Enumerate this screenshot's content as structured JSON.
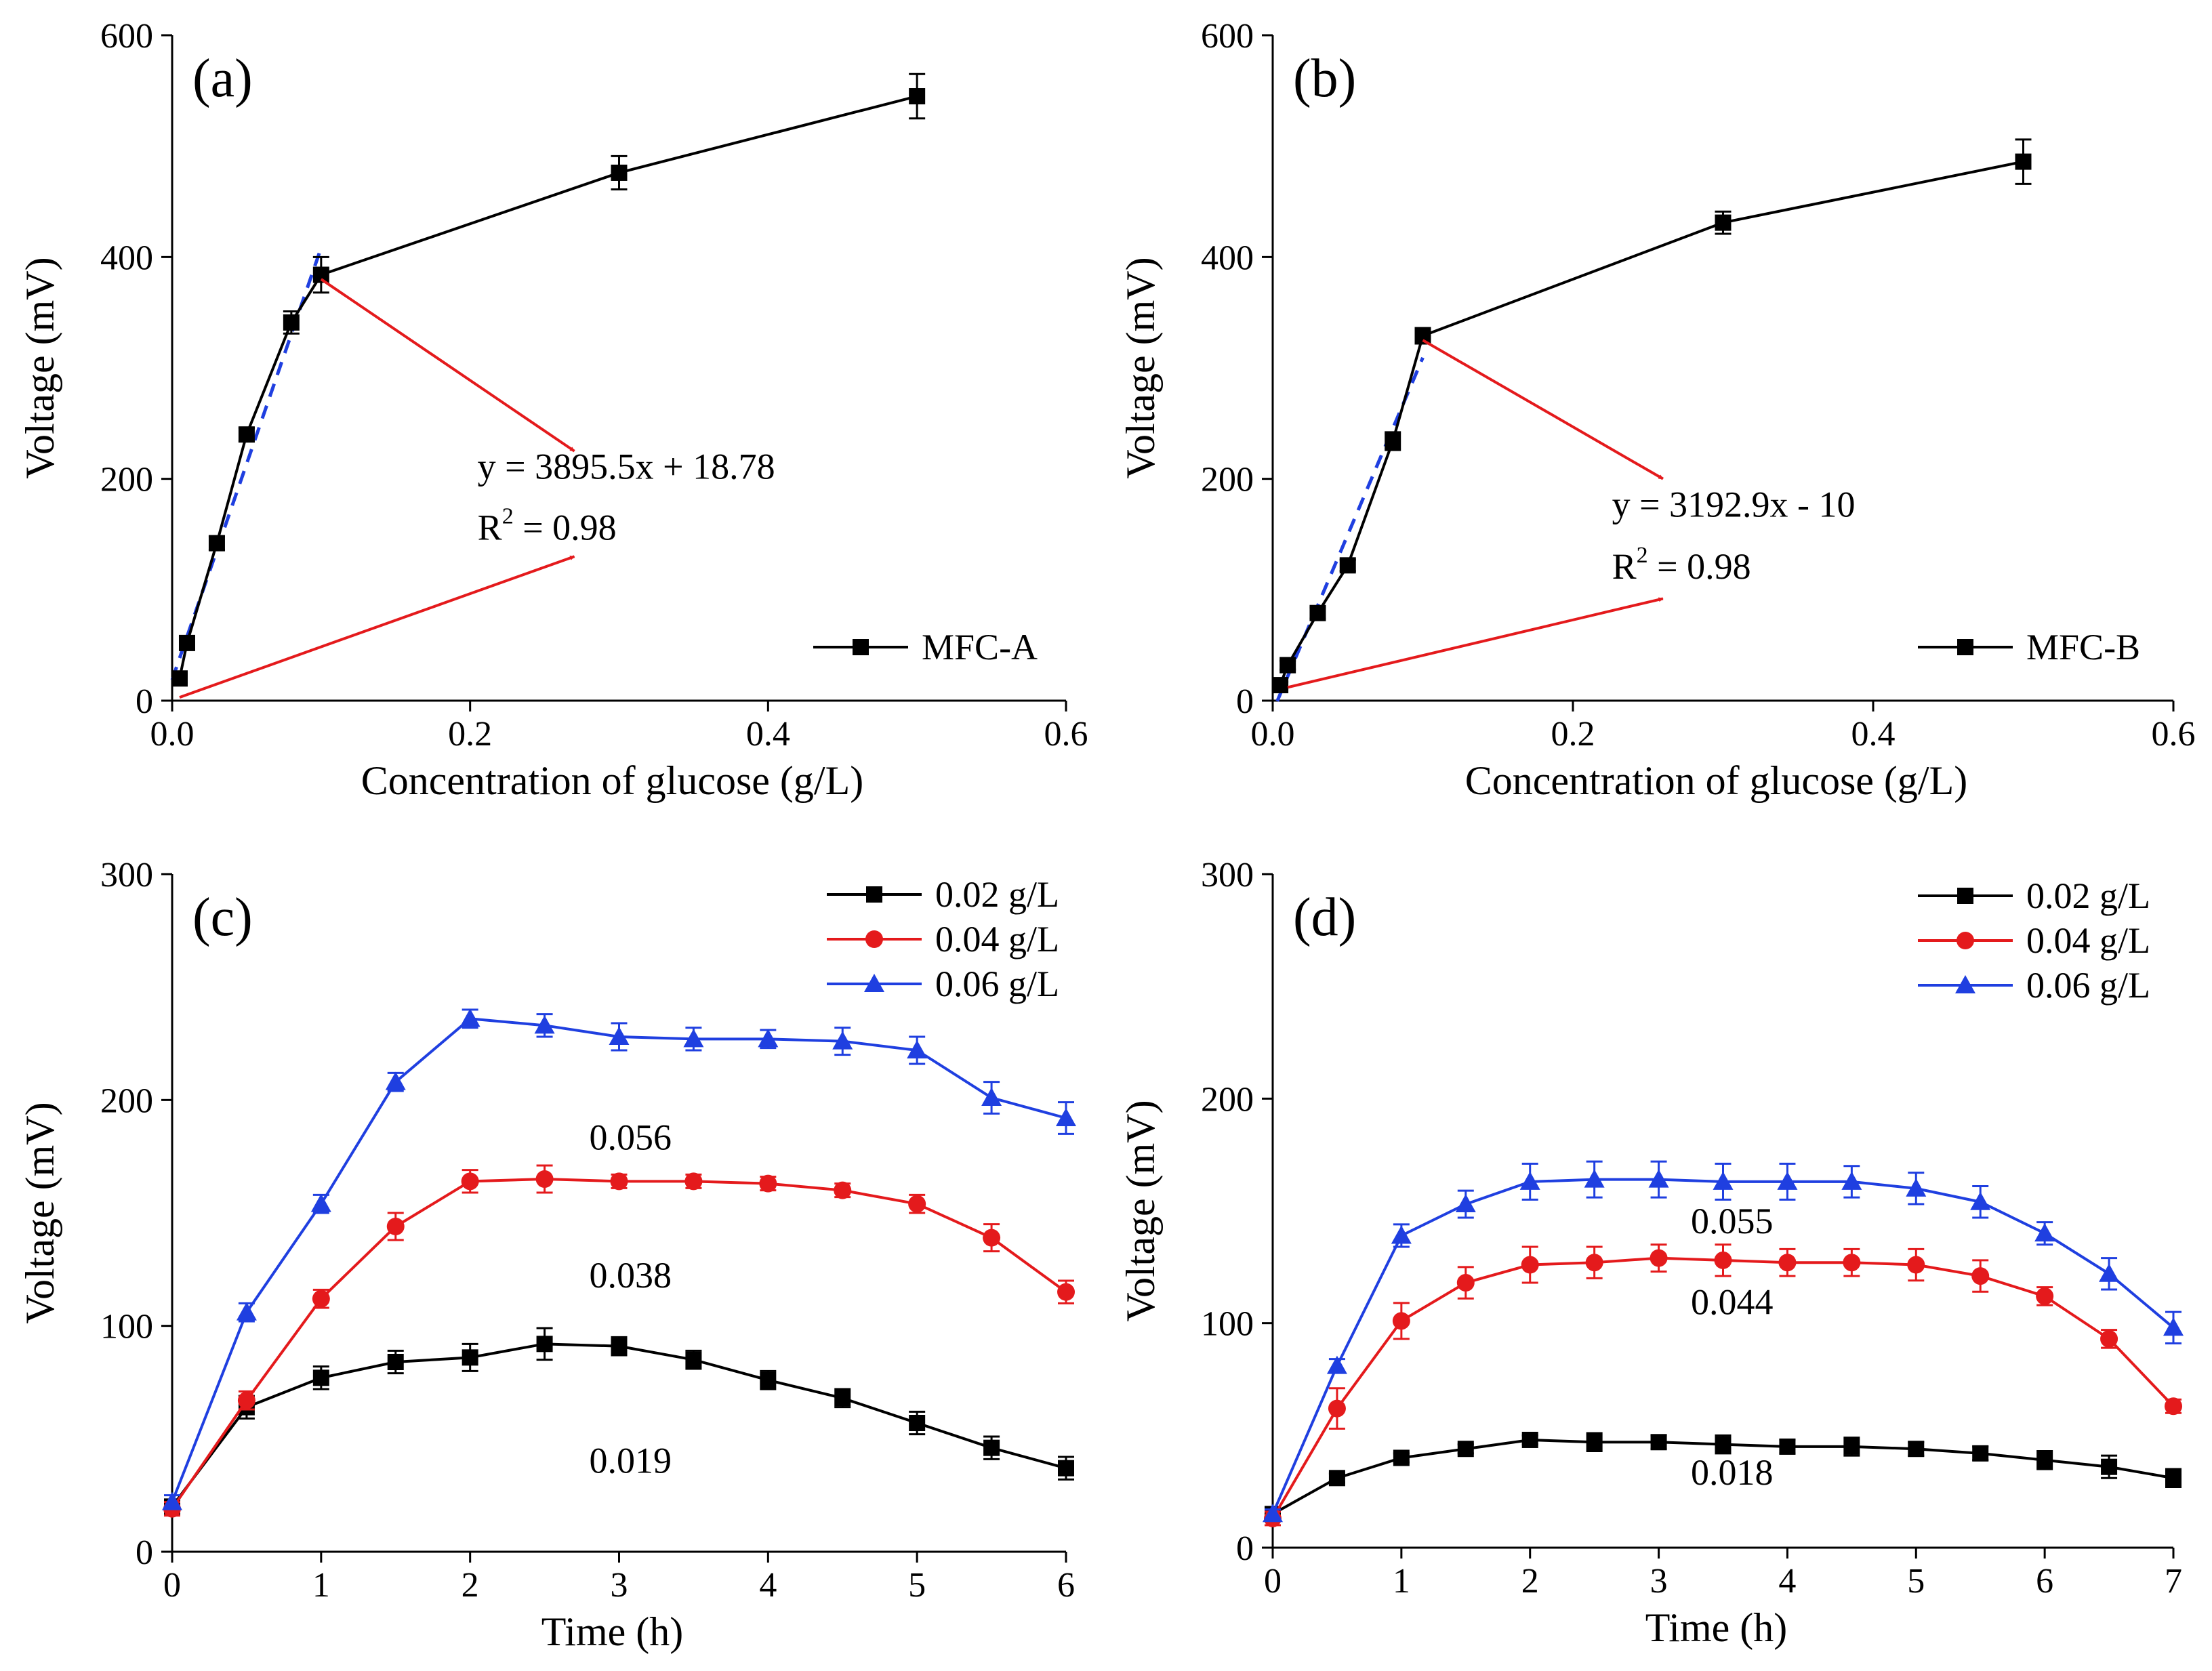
{
  "chart_data": [
    {
      "panel": "(a)",
      "type": "line",
      "xlabel": "Concentration of glucose (g/L)",
      "ylabel": "Voltage (mV)",
      "xlim": [
        0,
        0.6
      ],
      "ylim": [
        0,
        600
      ],
      "xticks": [
        0,
        0.2,
        0.4,
        0.6
      ],
      "xtick_labels": [
        "0.0",
        "0.2",
        "0.4",
        "0.6"
      ],
      "yticks": [
        0,
        200,
        400,
        600
      ],
      "ytick_labels": [
        "0",
        "200",
        "400",
        "600"
      ],
      "legend_position": "bottom-right",
      "series": [
        {
          "name": "MFC-A",
          "color": "#000000",
          "marker": "square",
          "x": [
            0.005,
            0.01,
            0.03,
            0.05,
            0.08,
            0.1,
            0.3,
            0.5
          ],
          "values": [
            20,
            52,
            142,
            240,
            341,
            384,
            476,
            545
          ],
          "errors": [
            4,
            6,
            6,
            6,
            10,
            16,
            15,
            20
          ]
        }
      ],
      "fit_line": {
        "slope": 3895.5,
        "intercept": 18.78,
        "x_range": [
          0.0,
          0.1
        ],
        "color": "#1f3fe0",
        "style": "dashed"
      },
      "equation": "y = 3895.5x + 18.78",
      "r2_prefix": "R",
      "r2_sup": "2",
      "r2_value": " = 0.98",
      "arrows": [
        {
          "from": [
            0.1,
            380
          ],
          "to": [
            0.27,
            225
          ],
          "color": "#e41a1c"
        },
        {
          "from": [
            0.005,
            3
          ],
          "to": [
            0.27,
            130
          ],
          "color": "#e41a1c"
        }
      ],
      "equation_anchor": [
        0.205,
        200
      ],
      "r2_anchor": [
        0.205,
        145
      ]
    },
    {
      "panel": "(b)",
      "type": "line",
      "xlabel": "Concentration of glucose (g/L)",
      "ylabel": "Voltage (mV)",
      "xlim": [
        0,
        0.6
      ],
      "ylim": [
        0,
        600
      ],
      "xticks": [
        0,
        0.2,
        0.4,
        0.6
      ],
      "xtick_labels": [
        "0.0",
        "0.2",
        "0.4",
        "0.6"
      ],
      "yticks": [
        0,
        200,
        400,
        600
      ],
      "ytick_labels": [
        "0",
        "200",
        "400",
        "600"
      ],
      "legend_position": "bottom-right",
      "series": [
        {
          "name": "MFC-B",
          "color": "#000000",
          "marker": "square",
          "x": [
            0.005,
            0.01,
            0.03,
            0.05,
            0.08,
            0.1,
            0.3,
            0.5
          ],
          "values": [
            14,
            32,
            79,
            122,
            234,
            329,
            431,
            486
          ],
          "errors": [
            3,
            4,
            5,
            5,
            8,
            7,
            10,
            20
          ]
        }
      ],
      "fit_line": {
        "slope": 3192.9,
        "intercept": -10,
        "x_range": [
          0.003,
          0.1
        ],
        "color": "#1f3fe0",
        "style": "dashed"
      },
      "equation": "y = 3192.9x - 10",
      "r2_prefix": "R",
      "r2_sup": "2",
      "r2_value": " = 0.98",
      "arrows": [
        {
          "from": [
            0.1,
            325
          ],
          "to": [
            0.26,
            200
          ],
          "color": "#e41a1c"
        },
        {
          "from": [
            0.01,
            12
          ],
          "to": [
            0.26,
            92
          ],
          "color": "#e41a1c"
        }
      ],
      "equation_anchor": [
        0.226,
        166
      ],
      "r2_anchor": [
        0.226,
        110
      ]
    },
    {
      "panel": "(c)",
      "type": "line",
      "xlabel": "Time (h)",
      "ylabel": "Voltage (mV)",
      "xlim": [
        0,
        6
      ],
      "ylim": [
        0,
        300
      ],
      "xticks": [
        0,
        1,
        2,
        3,
        4,
        5,
        6
      ],
      "xtick_labels": [
        "0",
        "1",
        "2",
        "3",
        "4",
        "5",
        "6"
      ],
      "yticks": [
        0,
        100,
        200,
        300
      ],
      "ytick_labels": [
        "0",
        "100",
        "200",
        "300"
      ],
      "legend_position": "top-right",
      "series": [
        {
          "name": "0.02 g/L",
          "color": "#000000",
          "marker": "square",
          "x": [
            0,
            0.5,
            1,
            1.5,
            2,
            2.5,
            3,
            3.5,
            4,
            4.5,
            5,
            5.5,
            6
          ],
          "values": [
            20,
            64,
            77,
            84,
            86,
            92,
            91,
            85,
            76,
            68,
            57,
            46,
            37
          ],
          "errors": [
            3,
            5,
            5,
            5,
            6,
            7,
            4,
            4,
            4,
            4,
            5,
            5,
            5
          ]
        },
        {
          "name": "0.04 g/L",
          "color": "#e41a1c",
          "marker": "circle",
          "x": [
            0,
            0.5,
            1,
            1.5,
            2,
            2.5,
            3,
            3.5,
            4,
            4.5,
            5,
            5.5,
            6
          ],
          "values": [
            19,
            67,
            112,
            144,
            164,
            165,
            164,
            164,
            163,
            160,
            154,
            139,
            115
          ],
          "errors": [
            3,
            4,
            4,
            6,
            5,
            6,
            3,
            3,
            3,
            3,
            4,
            6,
            5
          ]
        },
        {
          "name": "0.06 g/L",
          "color": "#1f3fe0",
          "marker": "triangle",
          "x": [
            0,
            0.5,
            1,
            1.5,
            2,
            2.5,
            3,
            3.5,
            4,
            4.5,
            5,
            5.5,
            6
          ],
          "values": [
            22,
            106,
            154,
            208,
            236,
            233,
            228,
            227,
            227,
            226,
            222,
            201,
            192
          ],
          "errors": [
            3,
            4,
            4,
            4,
            4,
            5,
            6,
            5,
            4,
            6,
            6,
            7,
            7
          ]
        }
      ],
      "slope_labels": [
        {
          "text": "0.056",
          "anchor": [
            2.8,
            178
          ]
        },
        {
          "text": "0.038",
          "anchor": [
            2.8,
            117
          ]
        },
        {
          "text": "0.019",
          "anchor": [
            2.8,
            35
          ]
        }
      ]
    },
    {
      "panel": "(d)",
      "type": "line",
      "xlabel": "Time (h)",
      "ylabel": "Voltage (mV)",
      "xlim": [
        0,
        7
      ],
      "ylim": [
        0,
        300
      ],
      "xticks": [
        0,
        1,
        2,
        3,
        4,
        5,
        6,
        7
      ],
      "xtick_labels": [
        "0",
        "1",
        "2",
        "3",
        "4",
        "5",
        "6",
        "7"
      ],
      "yticks": [
        0,
        100,
        200,
        300
      ],
      "ytick_labels": [
        "0",
        "100",
        "200",
        "300"
      ],
      "legend_position": "top-right",
      "series": [
        {
          "name": "0.02 g/L",
          "color": "#000000",
          "marker": "square",
          "x": [
            0,
            0.5,
            1,
            1.5,
            2,
            2.5,
            3,
            3.5,
            4,
            4.5,
            5,
            5.5,
            6,
            6.5,
            7
          ],
          "values": [
            15,
            31,
            40,
            44,
            48,
            47,
            47,
            46,
            45,
            45,
            44,
            42,
            39,
            36,
            31
          ],
          "errors": [
            2,
            2,
            2,
            2,
            2,
            4,
            3,
            4,
            3,
            4,
            3,
            3,
            4,
            5,
            4
          ]
        },
        {
          "name": "0.04 g/L",
          "color": "#e41a1c",
          "marker": "circle",
          "x": [
            0,
            0.5,
            1,
            1.5,
            2,
            2.5,
            3,
            3.5,
            4,
            4.5,
            5,
            5.5,
            6,
            6.5,
            7
          ],
          "values": [
            13,
            62,
            101,
            118,
            126,
            127,
            129,
            128,
            127,
            127,
            126,
            121,
            112,
            93,
            63
          ],
          "errors": [
            3,
            9,
            8,
            7,
            8,
            7,
            6,
            7,
            6,
            6,
            7,
            7,
            4,
            4,
            3
          ]
        },
        {
          "name": "0.06 g/L",
          "color": "#1f3fe0",
          "marker": "triangle",
          "x": [
            0,
            0.5,
            1,
            1.5,
            2,
            2.5,
            3,
            3.5,
            4,
            4.5,
            5,
            5.5,
            6,
            6.5,
            7
          ],
          "values": [
            15,
            81,
            139,
            153,
            163,
            164,
            164,
            163,
            163,
            163,
            160,
            154,
            140,
            122,
            98
          ],
          "errors": [
            2,
            3,
            5,
            6,
            8,
            8,
            8,
            8,
            8,
            7,
            7,
            7,
            5,
            7,
            7
          ]
        }
      ],
      "slope_labels": [
        {
          "text": "0.055",
          "anchor": [
            3.25,
            140
          ]
        },
        {
          "text": "0.044",
          "anchor": [
            3.25,
            104
          ]
        },
        {
          "text": "0.018",
          "anchor": [
            3.25,
            28
          ]
        }
      ]
    }
  ]
}
